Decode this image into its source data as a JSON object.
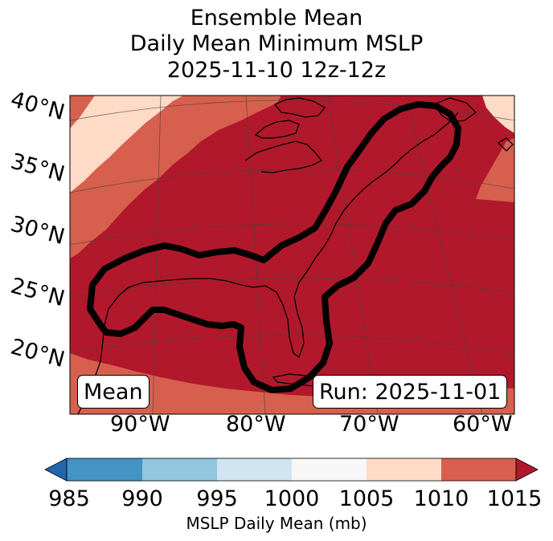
{
  "title": {
    "line1": "Ensemble Mean",
    "line2": "Daily Mean Minimum MSLP",
    "line3": "2025-11-10 12z-12z"
  },
  "map": {
    "lat_labels": [
      "40°N",
      "35°N",
      "30°N",
      "25°N",
      "20°N"
    ],
    "lon_labels": [
      "90°W",
      "80°W",
      "70°W",
      "60°W"
    ],
    "mean_box": "Mean",
    "run_box": "Run: 2025-11-01",
    "extent": {
      "lon_min": -97.5,
      "lon_max": -59,
      "lat_min": 14,
      "lat_max": 41
    }
  },
  "colorbar": {
    "label": "MSLP Daily Mean (mb)",
    "ticks": [
      "985",
      "990",
      "995",
      "1000",
      "1005",
      "1010",
      "1015"
    ],
    "colors": {
      "lt985": "#2166ac",
      "b985_990": "#4393c3",
      "b990_995": "#92c5de",
      "b995_1000": "#d1e5f0",
      "b1000_1005": "#f7f7f7",
      "b1005_1010": "#fddbc7",
      "b1010_1015": "#d6604d",
      "gt1015": "#b2182b"
    }
  }
}
